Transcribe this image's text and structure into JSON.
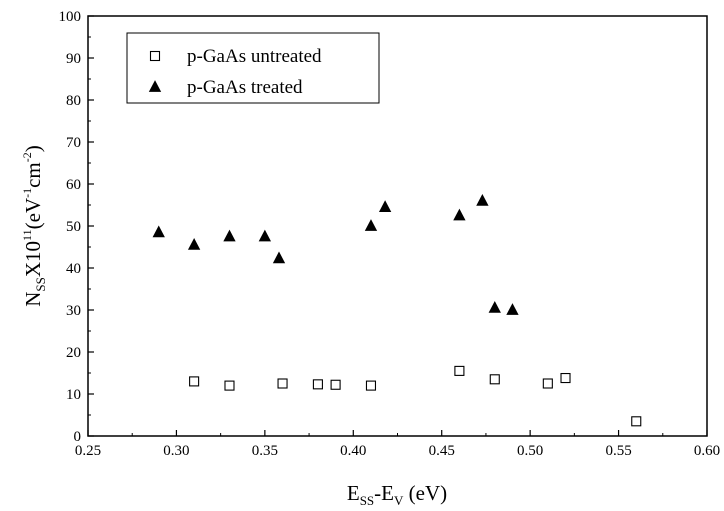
{
  "chart_data": {
    "type": "scatter",
    "xlim": [
      0.25,
      0.6
    ],
    "ylim": [
      0,
      100
    ],
    "x_ticks": [
      "0.25",
      "0.30",
      "0.35",
      "0.40",
      "0.45",
      "0.50",
      "0.55",
      "0.60"
    ],
    "y_ticks": [
      "0",
      "10",
      "20",
      "30",
      "40",
      "50",
      "60",
      "70",
      "80",
      "90",
      "100"
    ],
    "grid": false,
    "legend_position": "top-left",
    "xlabel": {
      "parts": [
        "E",
        "SS",
        "-E",
        "V",
        " (eV)"
      ]
    },
    "ylabel": {
      "parts": [
        "N",
        "SS",
        "X10",
        "11",
        "(eV",
        "-1",
        "cm",
        "-2",
        ")"
      ]
    },
    "series": [
      {
        "name": "p-GaAs untreated",
        "marker": "open-square",
        "color": "#000000",
        "x": [
          0.31,
          0.33,
          0.36,
          0.38,
          0.39,
          0.41,
          0.46,
          0.48,
          0.51,
          0.52,
          0.56
        ],
        "y": [
          13.0,
          12.0,
          12.5,
          12.3,
          12.2,
          12.0,
          15.5,
          13.5,
          12.5,
          13.8,
          3.5
        ]
      },
      {
        "name": "p-GaAs treated",
        "marker": "filled-triangle",
        "color": "#000000",
        "x": [
          0.29,
          0.31,
          0.33,
          0.35,
          0.358,
          0.41,
          0.418,
          0.46,
          0.473,
          0.48,
          0.49
        ],
        "y": [
          48.5,
          45.5,
          47.5,
          47.5,
          42.3,
          50.0,
          54.5,
          52.5,
          56.0,
          30.5,
          30.0
        ]
      }
    ]
  }
}
